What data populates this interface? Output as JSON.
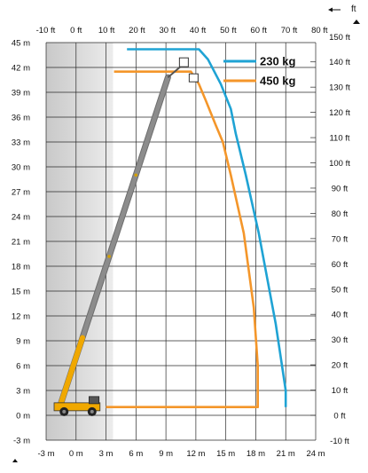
{
  "chart_data": {
    "type": "line",
    "title": "",
    "xlabel": "",
    "ylabel": "",
    "x_axis_bottom": {
      "ticks": [
        "-3 m",
        "0 m",
        "3 m",
        "6 m",
        "9 m",
        "12 m",
        "15 m",
        "18 m",
        "21 m",
        "24 m"
      ],
      "values": [
        -3,
        0,
        3,
        6,
        9,
        12,
        15,
        18,
        21,
        24
      ]
    },
    "x_axis_top": {
      "unit_label": "ft",
      "ticks": [
        "-10 ft",
        "0 ft",
        "10 ft",
        "20 ft",
        "30 ft",
        "40 ft",
        "50 ft",
        "60 ft",
        "70 ft",
        "80 ft"
      ]
    },
    "y_axis_left": {
      "ticks": [
        "45 m",
        "42 m",
        "39 m",
        "36 m",
        "33 m",
        "30 m",
        "27 m",
        "24 m",
        "21 m",
        "18 m",
        "15 m",
        "12 m",
        "9 m",
        "6 m",
        "3 m",
        "0 m",
        "-3 m"
      ],
      "values": [
        45,
        42,
        39,
        36,
        33,
        30,
        27,
        24,
        21,
        18,
        15,
        12,
        9,
        6,
        3,
        0,
        -3
      ]
    },
    "y_axis_right": {
      "ticks": [
        "150 ft",
        "140 ft",
        "130 ft",
        "120 ft",
        "110 ft",
        "100 ft",
        "90 ft",
        "80 ft",
        "70 ft",
        "60 ft",
        "50 ft",
        "40 ft",
        "30 ft",
        "20 ft",
        "10 ft",
        "0 ft",
        "-10 ft"
      ],
      "values": [
        150,
        140,
        130,
        120,
        110,
        100,
        90,
        80,
        70,
        60,
        50,
        40,
        30,
        20,
        10,
        0,
        -10
      ]
    },
    "xlim": [
      -3,
      24
    ],
    "ylim": [
      -3,
      45
    ],
    "grid": true,
    "shaded_region_x": [
      -3,
      3.7
    ],
    "series": [
      {
        "name": "230 kg",
        "color": "#1fa3d4",
        "x": [
          21,
          21,
          20,
          18.3,
          17,
          16,
          15.5,
          14.5,
          13.2,
          12.3,
          5.1
        ],
        "y": [
          1,
          3,
          11,
          22,
          29,
          34,
          37,
          40,
          43,
          44.2,
          44.2
        ]
      },
      {
        "name": "450 kg",
        "color": "#f4962a",
        "x": [
          3,
          18.2,
          18.2,
          17.8,
          16.8,
          15.5,
          14.7,
          14,
          13,
          12.3,
          11.5,
          3.8
        ],
        "y": [
          1,
          1,
          6,
          13,
          22,
          29,
          33,
          35,
          38,
          40,
          41.5,
          41.5
        ]
      }
    ],
    "boom": {
      "base": [
        -1.5,
        1.5
      ],
      "tip": [
        9.2,
        40.8
      ],
      "color": "#8c8c8c",
      "lower_section_color": "#f0a800"
    }
  },
  "legend": [
    {
      "label": "230 kg",
      "color": "#1fa3d4"
    },
    {
      "label": "450 kg",
      "color": "#f4962a"
    }
  ],
  "colors": {
    "blue_curve": "#1fa3d4",
    "orange_curve": "#f4962a",
    "shade": "#dadada",
    "grid": "#222222"
  }
}
